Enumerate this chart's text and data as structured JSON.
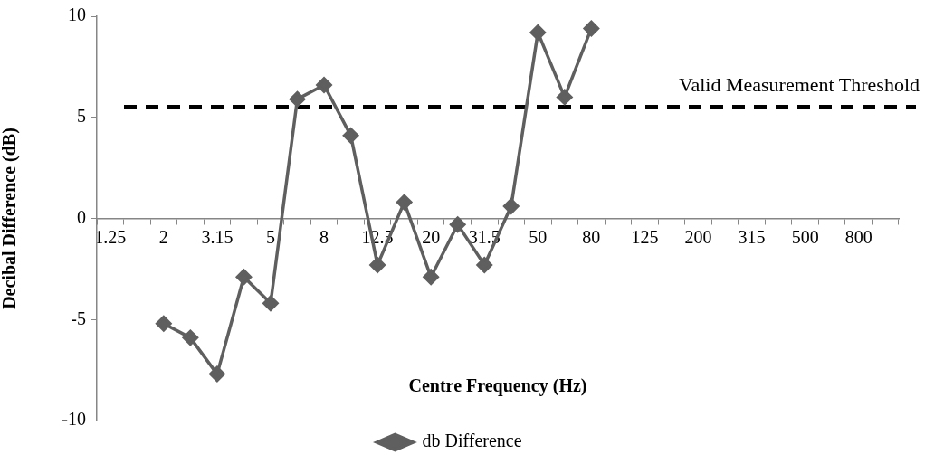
{
  "chart_data": {
    "type": "line",
    "xlabel": "Centre Frequency (Hz)",
    "ylabel": "Decibal Difference (dB)",
    "categories": [
      "1.25",
      null,
      "2",
      null,
      "3.15",
      null,
      "5",
      null,
      "8",
      null,
      "12.5",
      null,
      "20",
      null,
      "31.5",
      null,
      "50",
      null,
      "80",
      null,
      "125",
      null,
      "200",
      null,
      "315",
      null,
      "500",
      null,
      "800",
      null
    ],
    "series": [
      {
        "name": "db Difference",
        "color": "#5f5f5f",
        "values": [
          null,
          null,
          -5.2,
          -5.9,
          -7.7,
          -2.9,
          -4.2,
          5.9,
          6.6,
          4.1,
          -2.3,
          0.8,
          -2.9,
          -0.3,
          -2.3,
          0.6,
          9.2,
          6.0,
          9.4,
          null,
          null,
          null,
          null,
          null,
          null,
          null,
          null,
          null,
          null,
          null
        ]
      }
    ],
    "ylim": [
      -10,
      10
    ],
    "yticks": [
      -10,
      -5,
      0,
      5,
      10
    ],
    "ref_lines": [
      {
        "axis": "y",
        "value": 5.5,
        "label": "Valid Measurement Threshold",
        "color": "#000000",
        "line_style": "dashed"
      }
    ],
    "legend": "bottom",
    "marker": "diamond",
    "grid": false
  }
}
